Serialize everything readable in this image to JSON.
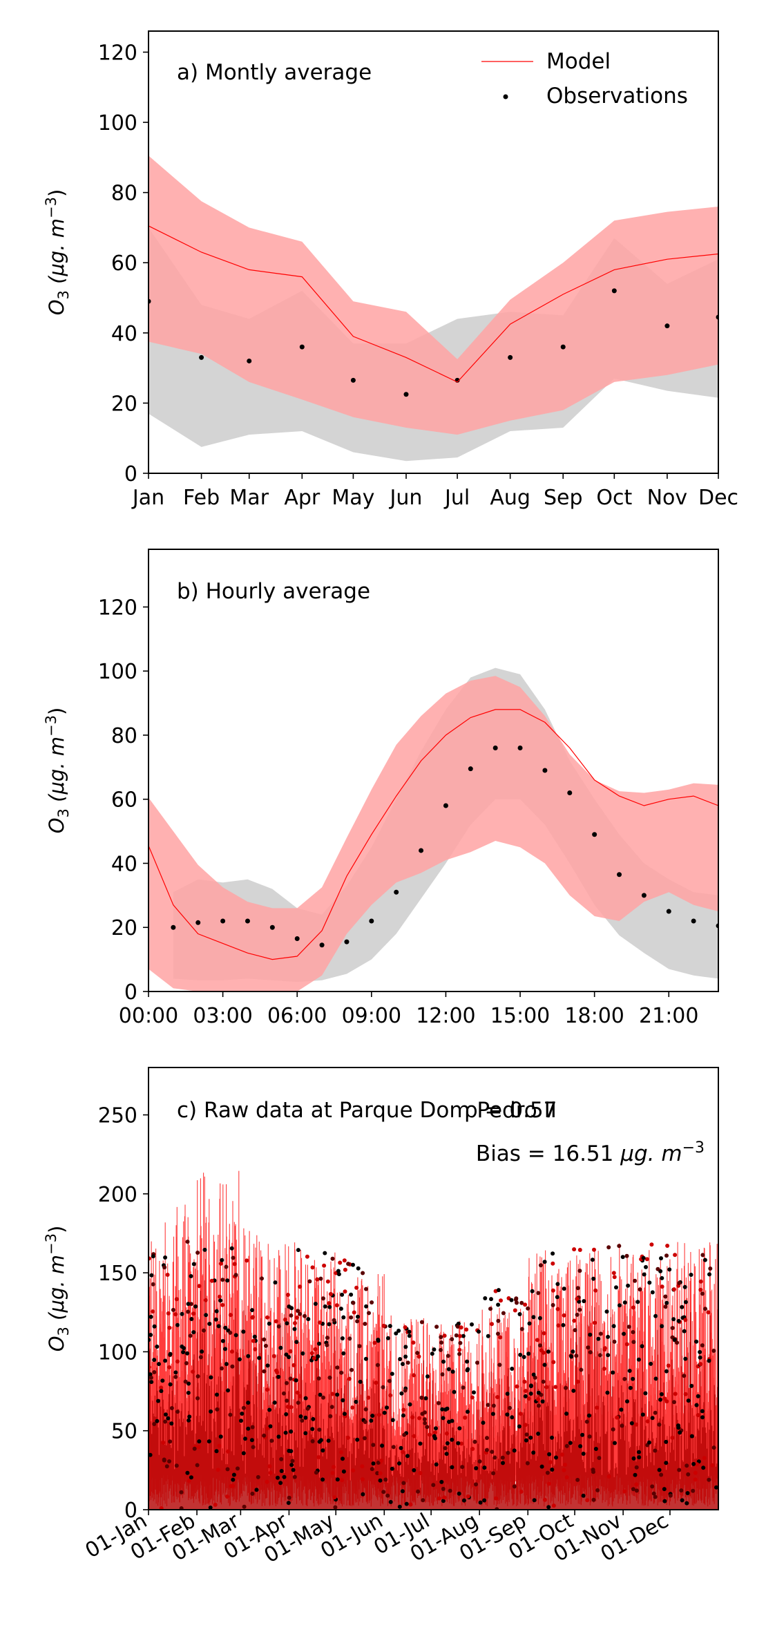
{
  "chart_data": [
    {
      "type": "line",
      "title": "a) Montly average",
      "ylabel_base": "O",
      "ylabel_sub": "3",
      "ylabel_unit": "(μg. m",
      "ylabel_exp": "−3",
      "ylim": [
        0,
        126
      ],
      "yticks": [
        0,
        20,
        40,
        60,
        80,
        100,
        120
      ],
      "categories": [
        "Jan",
        "Feb",
        "Mar",
        "Apr",
        "May",
        "Jun",
        "Jul",
        "Aug",
        "Sep",
        "Oct",
        "Nov",
        "Dec"
      ],
      "x_positions": [
        0,
        31,
        59,
        90,
        120,
        151,
        181,
        212,
        243,
        273,
        304,
        334
      ],
      "xlim": [
        0,
        334
      ],
      "legend": {
        "placement": "top-right",
        "entries": [
          "Model",
          "Observations"
        ]
      },
      "series": [
        {
          "name": "Model",
          "kind": "line",
          "color": "#ff0000",
          "values": [
            70.5,
            63,
            58,
            56,
            39,
            33,
            26,
            42.5,
            51,
            58,
            61,
            62.5
          ]
        },
        {
          "name": "Observations",
          "kind": "points",
          "color": "#000000",
          "values": [
            49,
            33,
            32,
            36,
            26.5,
            22.5,
            26.5,
            33,
            36,
            52,
            42,
            44.5
          ]
        }
      ],
      "bands": [
        {
          "kind": "observations-range",
          "color": "#d4d4d4",
          "upper": [
            70,
            48,
            44,
            52,
            37,
            37,
            44,
            46,
            45,
            67,
            54,
            61
          ],
          "lower": [
            17,
            7.5,
            11,
            12,
            6,
            3.5,
            4.5,
            12,
            13,
            27,
            23.5,
            21.5
          ]
        },
        {
          "kind": "model-range",
          "color": "#ffa3a3",
          "upper": [
            90.5,
            77.5,
            70,
            66,
            49,
            46,
            32.5,
            49.5,
            60,
            72,
            74.5,
            76
          ],
          "lower": [
            37.5,
            34,
            26,
            21,
            16,
            13,
            11,
            15,
            18,
            26,
            28,
            31
          ]
        }
      ]
    },
    {
      "type": "line",
      "title": "b) Hourly average",
      "ylabel_base": "O",
      "ylabel_sub": "3",
      "ylabel_unit": "(μg. m",
      "ylabel_exp": "−3",
      "ylim": [
        0,
        138
      ],
      "yticks": [
        0,
        20,
        40,
        60,
        80,
        100,
        120
      ],
      "x": [
        0,
        1,
        2,
        3,
        4,
        5,
        6,
        7,
        8,
        9,
        10,
        11,
        12,
        13,
        14,
        15,
        16,
        17,
        18,
        19,
        20,
        21,
        22,
        23
      ],
      "xlim": [
        0,
        23
      ],
      "xticks": [
        0,
        3,
        6,
        9,
        12,
        15,
        18,
        21
      ],
      "xtick_labels": [
        "00:00",
        "03:00",
        "06:00",
        "09:00",
        "12:00",
        "15:00",
        "18:00",
        "21:00"
      ],
      "series": [
        {
          "name": "Model",
          "kind": "line",
          "color": "#ff0000",
          "values": [
            45.5,
            27,
            18,
            15,
            12,
            10,
            11,
            19,
            36,
            49,
            61,
            72,
            80,
            85.5,
            88,
            88,
            84,
            76,
            66,
            61,
            58,
            60,
            61,
            58
          ]
        },
        {
          "name": "Observations",
          "kind": "points",
          "color": "#000000",
          "x": [
            1,
            2,
            3,
            4,
            5,
            6,
            7,
            8,
            9,
            10,
            11,
            12,
            13,
            14,
            15,
            16,
            17,
            18,
            19,
            20,
            21,
            22,
            23
          ],
          "values": [
            20,
            21.5,
            22,
            22,
            20,
            16.5,
            14.5,
            15.5,
            22,
            31,
            44,
            58,
            69.5,
            76,
            76,
            69,
            62,
            49,
            36.5,
            30,
            25,
            22,
            20.5
          ]
        }
      ],
      "bands": [
        {
          "kind": "observations-range",
          "color": "#d4d4d4",
          "x": [
            1,
            2,
            3,
            4,
            5,
            6,
            7,
            8,
            9,
            10,
            11,
            12,
            13,
            14,
            15,
            16,
            17,
            18,
            19,
            20,
            21,
            22,
            23
          ],
          "upper": [
            31,
            35,
            34,
            35,
            32,
            26,
            24,
            33,
            45,
            60,
            75,
            88,
            98,
            101,
            99,
            88,
            72,
            60,
            49,
            40,
            35,
            31,
            30
          ],
          "lower": [
            4,
            3.5,
            3.5,
            4,
            3.5,
            3,
            3.5,
            5.5,
            10,
            18,
            29,
            40,
            52,
            60,
            60,
            52,
            40,
            27,
            17.5,
            12,
            7,
            5,
            4
          ]
        },
        {
          "kind": "model-range",
          "color": "#ffa3a3",
          "upper": [
            60.5,
            50,
            39.5,
            32.5,
            28,
            26,
            26,
            32.5,
            48,
            63,
            77,
            86,
            93,
            97,
            98.5,
            95,
            86,
            74,
            66,
            62.5,
            62,
            63,
            65,
            64.5
          ],
          "lower": [
            7,
            1,
            0,
            0,
            0,
            0,
            0,
            5,
            18,
            27,
            34,
            37,
            41,
            43.5,
            47,
            45,
            40,
            30,
            23.5,
            22,
            28,
            31,
            27,
            25
          ]
        }
      ]
    },
    {
      "type": "line",
      "title": "c) Raw data at Parque Dom Pedro II",
      "annotation_r": "ρ = 0.57",
      "annotation_bias": "Bias = 16.51",
      "annotation_bias_unit": "μg. m",
      "annotation_bias_exp": "−3",
      "ylabel_base": "O",
      "ylabel_sub": "3",
      "ylabel_unit": "(μg. m",
      "ylabel_exp": "−3",
      "ylim": [
        0,
        280
      ],
      "yticks": [
        0,
        50,
        100,
        150,
        200,
        250
      ],
      "xlim": [
        0,
        365
      ],
      "xticks": [
        0,
        31,
        59,
        90,
        120,
        151,
        181,
        212,
        243,
        273,
        304,
        334
      ],
      "xtick_labels": [
        "01-Jan",
        "01-Feb",
        "01-Mar",
        "01-Apr",
        "01-May",
        "01-Jun",
        "01-Jul",
        "01-Aug",
        "01-Sep",
        "01-Oct",
        "01-Nov",
        "01-Dec"
      ],
      "series": [
        {
          "name": "Model",
          "kind": "line",
          "color": "#ff0000",
          "monthly_peak_envelope": [
            195,
            215,
            180,
            170,
            150,
            125,
            120,
            130,
            165,
            170,
            165,
            170
          ]
        },
        {
          "name": "Observations",
          "kind": "points",
          "color": "#000000",
          "monthly_peak_envelope": [
            170,
            172,
            160,
            165,
            158,
            120,
            118,
            140,
            170,
            170,
            168,
            168
          ]
        }
      ]
    }
  ]
}
